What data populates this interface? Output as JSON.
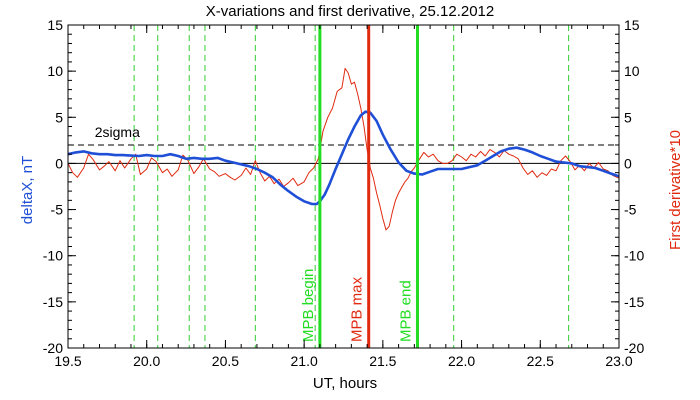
{
  "chart_data": {
    "type": "line",
    "title": "X-variations and first derivative, 25.12.2012",
    "xlabel": "UT, hours",
    "ylabel_left": "deltaX, nT",
    "ylabel_right": "First derivative*10",
    "xlim": [
      19.5,
      23.0
    ],
    "ylim": [
      -20,
      15
    ],
    "x_ticks": [
      19.5,
      20.0,
      20.5,
      21.0,
      21.5,
      22.0,
      22.5,
      23.0
    ],
    "x_tick_labels": [
      "19.5",
      "20.0",
      "20.5",
      "21.0",
      "21.5",
      "22.0",
      "22.5",
      "23.0"
    ],
    "y_ticks": [
      -20,
      -15,
      -10,
      -5,
      0,
      5,
      10,
      15
    ],
    "y_tick_labels": [
      "-20",
      "-15",
      "-10",
      "-5",
      "0",
      "5",
      "10",
      "15"
    ],
    "colors": {
      "deltaX": "#1f4fd6",
      "derivative": "#e02a10",
      "mpb_begin_end": "#22dd22",
      "mpb_max": "#e02a10",
      "green_dashed": "#33cc33",
      "axes": "#000000",
      "left_label": "#1f4fd6",
      "right_label": "#e02a10"
    },
    "threshold": {
      "label": "2sigma",
      "y": 2.0
    },
    "zero_line": 0,
    "dashed_vlines": [
      19.92,
      20.07,
      20.27,
      20.37,
      20.69,
      21.07,
      21.95,
      22.68
    ],
    "markers": [
      {
        "label": "MPB begin",
        "x": 21.1,
        "color": "#22dd22"
      },
      {
        "label": "MPB max",
        "x": 21.41,
        "color": "#e02a10"
      },
      {
        "label": "MPB end",
        "x": 21.72,
        "color": "#22dd22"
      }
    ],
    "series": [
      {
        "name": "deltaX",
        "points": [
          [
            19.5,
            1.0
          ],
          [
            19.55,
            1.2
          ],
          [
            19.6,
            1.3
          ],
          [
            19.65,
            1.1
          ],
          [
            19.7,
            1.0
          ],
          [
            19.75,
            1.0
          ],
          [
            19.8,
            0.9
          ],
          [
            19.85,
            0.9
          ],
          [
            19.9,
            0.85
          ],
          [
            19.95,
            0.8
          ],
          [
            20.0,
            0.9
          ],
          [
            20.05,
            0.8
          ],
          [
            20.1,
            0.8
          ],
          [
            20.15,
            1.0
          ],
          [
            20.2,
            0.8
          ],
          [
            20.25,
            0.5
          ],
          [
            20.3,
            0.6
          ],
          [
            20.35,
            0.5
          ],
          [
            20.4,
            0.5
          ],
          [
            20.45,
            0.6
          ],
          [
            20.5,
            0.3
          ],
          [
            20.55,
            0.1
          ],
          [
            20.6,
            -0.1
          ],
          [
            20.65,
            -0.3
          ],
          [
            20.7,
            -0.6
          ],
          [
            20.75,
            -1.0
          ],
          [
            20.8,
            -1.5
          ],
          [
            20.85,
            -2.3
          ],
          [
            20.9,
            -3.0
          ],
          [
            20.95,
            -3.6
          ],
          [
            21.0,
            -4.1
          ],
          [
            21.05,
            -4.4
          ],
          [
            21.08,
            -4.4
          ],
          [
            21.1,
            -4.1
          ],
          [
            21.13,
            -3.4
          ],
          [
            21.16,
            -2.3
          ],
          [
            21.2,
            -0.6
          ],
          [
            21.24,
            1.0
          ],
          [
            21.28,
            2.6
          ],
          [
            21.32,
            4.0
          ],
          [
            21.36,
            5.2
          ],
          [
            21.39,
            5.6
          ],
          [
            21.42,
            5.5
          ],
          [
            21.46,
            4.6
          ],
          [
            21.5,
            3.1
          ],
          [
            21.55,
            1.5
          ],
          [
            21.6,
            0.1
          ],
          [
            21.65,
            -0.8
          ],
          [
            21.7,
            -1.1
          ],
          [
            21.75,
            -1.2
          ],
          [
            21.8,
            -0.9
          ],
          [
            21.85,
            -0.6
          ],
          [
            21.9,
            -0.6
          ],
          [
            21.95,
            -0.6
          ],
          [
            22.0,
            -0.6
          ],
          [
            22.05,
            -0.4
          ],
          [
            22.1,
            -0.2
          ],
          [
            22.15,
            0.3
          ],
          [
            22.2,
            0.8
          ],
          [
            22.25,
            1.3
          ],
          [
            22.3,
            1.6
          ],
          [
            22.35,
            1.7
          ],
          [
            22.4,
            1.5
          ],
          [
            22.45,
            1.2
          ],
          [
            22.5,
            0.8
          ],
          [
            22.55,
            0.5
          ],
          [
            22.6,
            0.2
          ],
          [
            22.65,
            0.1
          ],
          [
            22.7,
            0.0
          ],
          [
            22.75,
            -0.3
          ],
          [
            22.8,
            -0.4
          ],
          [
            22.85,
            -0.5
          ],
          [
            22.9,
            -0.8
          ],
          [
            22.95,
            -1.1
          ],
          [
            23.0,
            -1.4
          ]
        ]
      },
      {
        "name": "First derivative*10",
        "points": [
          [
            19.5,
            0.0
          ],
          [
            19.53,
            -1.0
          ],
          [
            19.56,
            -1.5
          ],
          [
            19.6,
            -0.5
          ],
          [
            19.63,
            1.0
          ],
          [
            19.66,
            0.4
          ],
          [
            19.7,
            -0.7
          ],
          [
            19.73,
            -0.3
          ],
          [
            19.76,
            0.2
          ],
          [
            19.8,
            -0.8
          ],
          [
            19.83,
            0.3
          ],
          [
            19.86,
            -0.5
          ],
          [
            19.9,
            0.5
          ],
          [
            19.93,
            1.0
          ],
          [
            19.96,
            -1.2
          ],
          [
            20.0,
            -0.6
          ],
          [
            20.03,
            0.6
          ],
          [
            20.06,
            0.2
          ],
          [
            20.1,
            -1.0
          ],
          [
            20.13,
            -0.6
          ],
          [
            20.16,
            -1.4
          ],
          [
            20.2,
            -0.7
          ],
          [
            20.23,
            0.9
          ],
          [
            20.26,
            0.4
          ],
          [
            20.3,
            -1.1
          ],
          [
            20.33,
            -0.4
          ],
          [
            20.36,
            0.5
          ],
          [
            20.4,
            -0.6
          ],
          [
            20.43,
            -0.9
          ],
          [
            20.46,
            -1.4
          ],
          [
            20.5,
            -1.1
          ],
          [
            20.53,
            -1.5
          ],
          [
            20.56,
            -1.8
          ],
          [
            20.6,
            -1.3
          ],
          [
            20.63,
            -0.5
          ],
          [
            20.66,
            -1.2
          ],
          [
            20.69,
            0.3
          ],
          [
            20.72,
            -1.0
          ],
          [
            20.75,
            -1.9
          ],
          [
            20.78,
            -1.4
          ],
          [
            20.81,
            -2.2
          ],
          [
            20.84,
            -1.7
          ],
          [
            20.87,
            -2.5
          ],
          [
            20.9,
            -2.1
          ],
          [
            20.93,
            -1.6
          ],
          [
            20.96,
            -2.4
          ],
          [
            21.0,
            -2.0
          ],
          [
            21.03,
            -1.0
          ],
          [
            21.06,
            -0.5
          ],
          [
            21.09,
            0.5
          ],
          [
            21.12,
            3.5
          ],
          [
            21.15,
            5.0
          ],
          [
            21.18,
            6.0
          ],
          [
            21.21,
            7.8
          ],
          [
            21.24,
            8.2
          ],
          [
            21.26,
            10.3
          ],
          [
            21.28,
            9.8
          ],
          [
            21.3,
            8.6
          ],
          [
            21.32,
            8.8
          ],
          [
            21.34,
            7.5
          ],
          [
            21.36,
            6.0
          ],
          [
            21.38,
            4.0
          ],
          [
            21.4,
            1.5
          ],
          [
            21.42,
            -0.5
          ],
          [
            21.44,
            -1.6
          ],
          [
            21.46,
            -3.2
          ],
          [
            21.48,
            -4.5
          ],
          [
            21.5,
            -6.0
          ],
          [
            21.52,
            -7.2
          ],
          [
            21.54,
            -6.8
          ],
          [
            21.56,
            -5.3
          ],
          [
            21.58,
            -4.0
          ],
          [
            21.6,
            -3.2
          ],
          [
            21.62,
            -2.6
          ],
          [
            21.64,
            -2.0
          ],
          [
            21.66,
            -1.6
          ],
          [
            21.68,
            -0.9
          ],
          [
            21.7,
            -0.5
          ],
          [
            21.73,
            0.4
          ],
          [
            21.76,
            1.2
          ],
          [
            21.79,
            0.7
          ],
          [
            21.82,
            1.0
          ],
          [
            21.85,
            0.3
          ],
          [
            21.88,
            0.0
          ],
          [
            21.91,
            0.0
          ],
          [
            21.94,
            0.3
          ],
          [
            21.97,
            1.0
          ],
          [
            22.0,
            0.7
          ],
          [
            22.03,
            0.3
          ],
          [
            22.06,
            1.0
          ],
          [
            22.09,
            0.7
          ],
          [
            22.12,
            1.3
          ],
          [
            22.15,
            0.8
          ],
          [
            22.18,
            1.5
          ],
          [
            22.21,
            1.2
          ],
          [
            22.24,
            0.7
          ],
          [
            22.27,
            1.4
          ],
          [
            22.3,
            1.0
          ],
          [
            22.33,
            0.8
          ],
          [
            22.36,
            0.5
          ],
          [
            22.39,
            -0.5
          ],
          [
            22.42,
            -1.2
          ],
          [
            22.45,
            -0.8
          ],
          [
            22.48,
            -1.5
          ],
          [
            22.51,
            -1.0
          ],
          [
            22.54,
            -1.3
          ],
          [
            22.57,
            -0.6
          ],
          [
            22.6,
            -0.8
          ],
          [
            22.63,
            0.3
          ],
          [
            22.66,
            0.8
          ],
          [
            22.69,
            0.2
          ],
          [
            22.72,
            -0.7
          ],
          [
            22.75,
            -0.2
          ],
          [
            22.78,
            -0.8
          ],
          [
            22.81,
            0.0
          ],
          [
            22.84,
            -0.5
          ],
          [
            22.87,
            0.1
          ],
          [
            22.9,
            -0.6
          ],
          [
            22.93,
            -0.8
          ],
          [
            22.96,
            -1.3
          ],
          [
            23.0,
            -1.6
          ]
        ]
      }
    ]
  }
}
